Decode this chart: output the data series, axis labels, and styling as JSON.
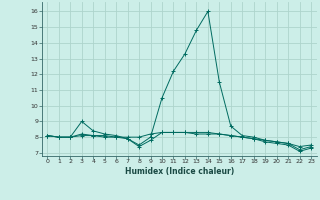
{
  "xlabel": "Humidex (Indice chaleur)",
  "xlim": [
    -0.5,
    23.5
  ],
  "ylim": [
    6.8,
    16.6
  ],
  "yticks": [
    7,
    8,
    9,
    10,
    11,
    12,
    13,
    14,
    15,
    16
  ],
  "xticks": [
    0,
    1,
    2,
    3,
    4,
    5,
    6,
    7,
    8,
    9,
    10,
    11,
    12,
    13,
    14,
    15,
    16,
    17,
    18,
    19,
    20,
    21,
    22,
    23
  ],
  "background_color": "#cceee8",
  "grid_color": "#aed4cc",
  "line_color": "#006b60",
  "series": {
    "line1": [
      8.1,
      8.0,
      8.0,
      9.0,
      8.4,
      8.2,
      8.1,
      7.9,
      7.4,
      7.8,
      8.3,
      8.3,
      8.3,
      8.3,
      8.3,
      8.2,
      8.1,
      8.0,
      7.9,
      7.7,
      7.6,
      7.5,
      7.1,
      7.3
    ],
    "line2": [
      8.1,
      8.0,
      8.0,
      8.1,
      8.1,
      8.1,
      8.0,
      8.0,
      8.0,
      8.2,
      8.3,
      8.3,
      8.3,
      8.2,
      8.2,
      8.2,
      8.1,
      8.0,
      7.9,
      7.8,
      7.7,
      7.6,
      7.4,
      7.5
    ],
    "line3": [
      8.1,
      8.0,
      8.0,
      8.2,
      8.1,
      8.0,
      8.0,
      7.9,
      7.5,
      8.0,
      10.5,
      12.2,
      13.3,
      14.8,
      16.0,
      11.5,
      8.7,
      8.1,
      8.0,
      7.8,
      7.7,
      7.6,
      7.2,
      7.4
    ]
  }
}
